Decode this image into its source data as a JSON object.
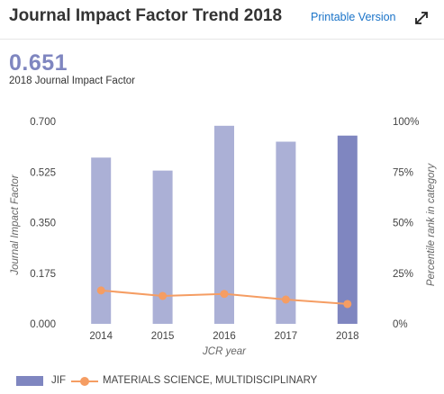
{
  "header": {
    "title": "Journal Impact Factor Trend 2018",
    "printable_label": "Printable Version",
    "expand_icon": "expand-diagonal-arrows-icon"
  },
  "summary": {
    "value": "0.651",
    "caption": "2018 Journal Impact Factor"
  },
  "colors": {
    "bar": "#abb0d6",
    "bar_current": "#7f86c0",
    "line": "#f59d63",
    "link": "#1a73c8"
  },
  "chart_data": {
    "type": "bar",
    "categories": [
      "2014",
      "2015",
      "2016",
      "2017",
      "2018"
    ],
    "series": [
      {
        "name": "JIF",
        "type": "bar",
        "axis": "left",
        "values": [
          0.575,
          0.53,
          0.685,
          0.63,
          0.651
        ]
      },
      {
        "name": "MATERIALS SCIENCE, MULTIDISCIPLINARY",
        "type": "line",
        "axis": "right",
        "values": [
          16.5,
          13.8,
          14.8,
          12.0,
          9.8
        ]
      }
    ],
    "xlabel": "JCR year",
    "ylabel": "Journal Impact Factor",
    "y2label": "Percentile rank in category",
    "ylim": [
      0,
      0.7
    ],
    "y2lim": [
      0,
      100
    ],
    "yticks": [
      "0.000",
      "0.175",
      "0.350",
      "0.525",
      "0.700"
    ],
    "y2ticks": [
      "0%",
      "25%",
      "50%",
      "75%",
      "100%"
    ],
    "grid": false,
    "legend_position": "bottom-left"
  }
}
